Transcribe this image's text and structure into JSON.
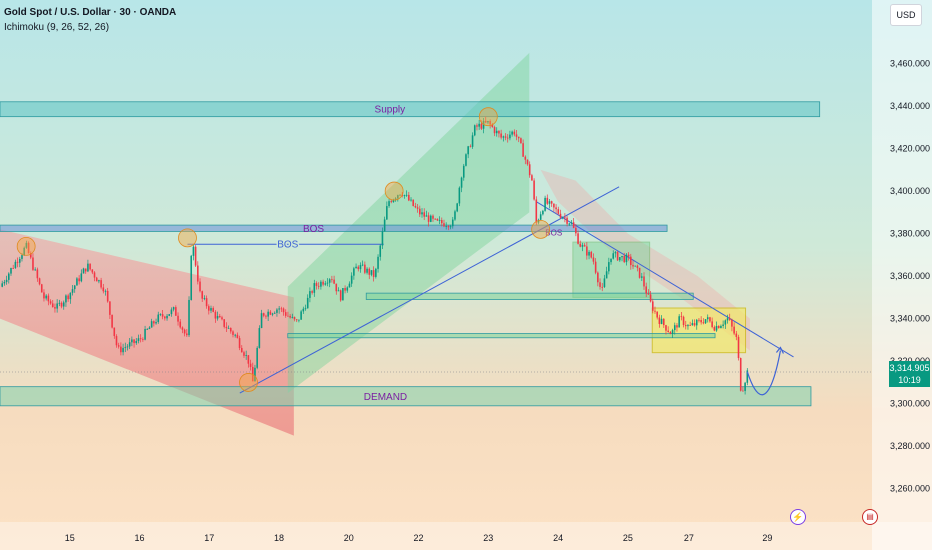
{
  "header": {
    "symbol_title": "Gold Spot / U.S. Dollar · 30 · OANDA",
    "indicator": "Ichimoku (9, 26, 52, 26)",
    "currency_button": "USD"
  },
  "price_badge": {
    "price": "3,314.905",
    "countdown": "10:19"
  },
  "icons": {
    "lightning": "lightning-icon",
    "flag": "us-flag-icon"
  },
  "colors": {
    "bull": "#089981",
    "bear": "#f23645",
    "supply_zone": "#5ec4c4",
    "bos_zone": "#6a8ed8",
    "accent_purple": "#7b1fa2",
    "trend_line": "#3e63d6",
    "yellow_box": "#f2e86b",
    "pivot_circle": "#f5a742"
  },
  "chart_data": {
    "type": "candlestick",
    "y_axis": {
      "ticks": [
        "3,460.000",
        "3,440.000",
        "3,420.000",
        "3,400.000",
        "3,380.000",
        "3,360.000",
        "3,340.000",
        "3,320.000",
        "3,300.000",
        "3,280.000",
        "3,260.000"
      ],
      "tick_values": [
        3460,
        3440,
        3420,
        3400,
        3380,
        3360,
        3340,
        3320,
        3300,
        3280,
        3260
      ],
      "ylim": [
        3250,
        3472
      ]
    },
    "x_axis": {
      "ticks": [
        "15",
        "16",
        "17",
        "18",
        "20",
        "22",
        "23",
        "24",
        "25",
        "27",
        "29"
      ],
      "tick_positions": [
        0.08,
        0.16,
        0.24,
        0.32,
        0.4,
        0.48,
        0.56,
        0.64,
        0.72,
        0.79,
        0.88
      ]
    },
    "last_price": 3314.905,
    "price_path": [
      [
        0.0,
        3355
      ],
      [
        0.02,
        3368
      ],
      [
        0.03,
        3374
      ],
      [
        0.04,
        3362
      ],
      [
        0.05,
        3350
      ],
      [
        0.065,
        3345
      ],
      [
        0.08,
        3352
      ],
      [
        0.1,
        3365
      ],
      [
        0.12,
        3354
      ],
      [
        0.135,
        3325
      ],
      [
        0.16,
        3330
      ],
      [
        0.18,
        3340
      ],
      [
        0.2,
        3344
      ],
      [
        0.215,
        3330
      ],
      [
        0.22,
        3378
      ],
      [
        0.23,
        3350
      ],
      [
        0.25,
        3340
      ],
      [
        0.27,
        3332
      ],
      [
        0.285,
        3320
      ],
      [
        0.29,
        3310
      ],
      [
        0.3,
        3342
      ],
      [
        0.32,
        3345
      ],
      [
        0.34,
        3338
      ],
      [
        0.36,
        3355
      ],
      [
        0.38,
        3360
      ],
      [
        0.39,
        3350
      ],
      [
        0.41,
        3365
      ],
      [
        0.43,
        3360
      ],
      [
        0.445,
        3395
      ],
      [
        0.46,
        3400
      ],
      [
        0.48,
        3390
      ],
      [
        0.5,
        3385
      ],
      [
        0.52,
        3385
      ],
      [
        0.53,
        3410
      ],
      [
        0.545,
        3430
      ],
      [
        0.56,
        3432
      ],
      [
        0.575,
        3425
      ],
      [
        0.59,
        3428
      ],
      [
        0.6,
        3418
      ],
      [
        0.61,
        3405
      ],
      [
        0.615,
        3385
      ],
      [
        0.625,
        3395
      ],
      [
        0.64,
        3390
      ],
      [
        0.655,
        3385
      ],
      [
        0.665,
        3375
      ],
      [
        0.68,
        3368
      ],
      [
        0.69,
        3352
      ],
      [
        0.7,
        3370
      ],
      [
        0.72,
        3368
      ],
      [
        0.735,
        3360
      ],
      [
        0.745,
        3348
      ],
      [
        0.755,
        3340
      ],
      [
        0.77,
        3333
      ],
      [
        0.78,
        3340
      ],
      [
        0.79,
        3336
      ],
      [
        0.8,
        3338
      ],
      [
        0.81,
        3340
      ],
      [
        0.82,
        3336
      ],
      [
        0.835,
        3340
      ],
      [
        0.845,
        3330
      ],
      [
        0.85,
        3305
      ],
      [
        0.857,
        3315
      ]
    ],
    "projection": [
      [
        0.857,
        3315
      ],
      [
        0.875,
        3302
      ],
      [
        0.888,
        3312
      ],
      [
        0.895,
        3325
      ]
    ],
    "zones": [
      {
        "label": "Supply",
        "from": 3435,
        "to": 3442,
        "x0": 0.0,
        "x1": 0.94
      },
      {
        "label": "BOS",
        "from": 3381,
        "to": 3384,
        "x0": 0.0,
        "x1": 0.765
      },
      {
        "label": "DEMAND",
        "from": 3299,
        "to": 3308,
        "x0": 0.0,
        "x1": 0.93
      },
      {
        "label": "",
        "from": 3349,
        "to": 3352,
        "x0": 0.42,
        "x1": 0.795
      },
      {
        "label": "",
        "from": 3331,
        "to": 3333,
        "x0": 0.33,
        "x1": 0.82
      }
    ],
    "inline_label": "BOS",
    "annotations": [
      "Supply",
      "BOS",
      "DEMAND",
      "BOS"
    ]
  }
}
